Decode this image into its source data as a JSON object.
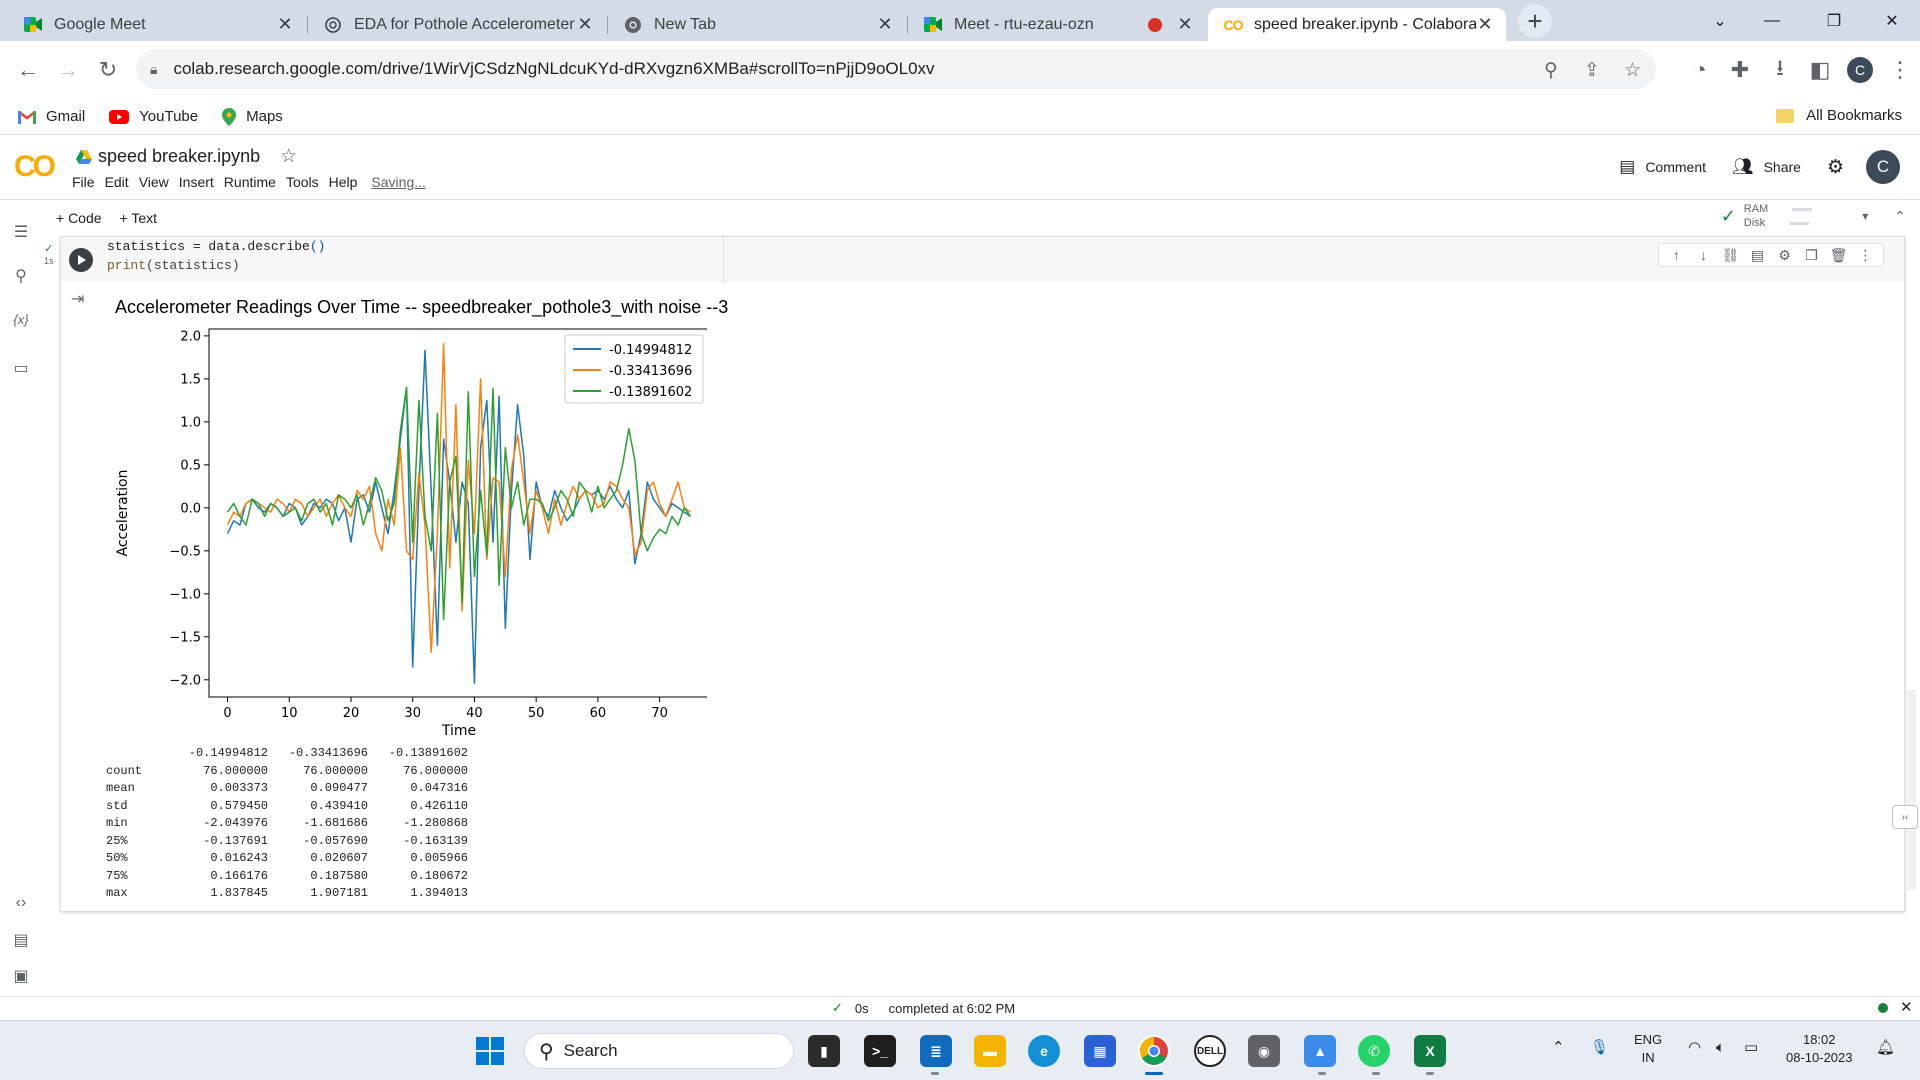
{
  "browser": {
    "tabs": [
      {
        "title": "Google Meet",
        "icon": "google-meet-icon",
        "active": false
      },
      {
        "title": "EDA for Pothole Accelerometer D",
        "icon": "openai-icon",
        "active": false
      },
      {
        "title": "New Tab",
        "icon": "chrome-icon",
        "active": false
      },
      {
        "title": "Meet - rtu-ezau-ozn",
        "icon": "google-meet-icon",
        "active": false,
        "recording": true
      },
      {
        "title": "speed breaker.ipynb - Colaborat",
        "icon": "colab-icon",
        "active": true
      }
    ],
    "url": "colab.research.google.com/drive/1WirVjCSdzNgNLdcuKYd-dRXvgzn6XMBa#scrollTo=nPjjD9oOL0xv",
    "profile_initial": "C",
    "bookmarks": [
      {
        "label": "Gmail",
        "icon": "gmail-icon"
      },
      {
        "label": "YouTube",
        "icon": "youtube-icon"
      },
      {
        "label": "Maps",
        "icon": "maps-icon"
      }
    ],
    "all_bookmarks": "All Bookmarks"
  },
  "colab": {
    "logo": "CO",
    "notebook_title": "speed breaker.ipynb",
    "menu": [
      "File",
      "Edit",
      "View",
      "Insert",
      "Runtime",
      "Tools",
      "Help"
    ],
    "saving_status": "Saving...",
    "comment_label": "Comment",
    "share_label": "Share",
    "user_initial": "C",
    "add_code": "+ Code",
    "add_text": "+ Text",
    "ram_label": "RAM",
    "disk_label": "Disk",
    "exec_time": "1s"
  },
  "cell": {
    "code_line1_a": "statistics = data.describe",
    "code_line1_b": "()",
    "code_line2_a": "print",
    "code_line2_b": "(statistics)"
  },
  "chart_data": {
    "type": "line",
    "title": "Accelerometer Readings Over Time -- speedbreaker_pothole3_with noise --3",
    "xlabel": "Time",
    "ylabel": "Acceleration",
    "xlim": [
      -3,
      78
    ],
    "ylim": [
      -2.2,
      2.08
    ],
    "xticks": [
      0,
      10,
      20,
      30,
      40,
      50,
      60,
      70
    ],
    "yticks": [
      -2.0,
      -1.5,
      -1.0,
      -0.5,
      0.0,
      0.5,
      1.0,
      1.5,
      2.0
    ],
    "legend_position": "top-right",
    "grid": false,
    "series": [
      {
        "name": "-0.14994812",
        "color": "#1f77b4",
        "values": [
          -0.3,
          -0.15,
          -0.2,
          0.05,
          0.1,
          0.0,
          -0.05,
          0.05,
          0.0,
          -0.1,
          0.05,
          0.0,
          -0.2,
          -0.1,
          0.05,
          0.0,
          0.1,
          0.05,
          -0.15,
          0.0,
          -0.4,
          0.1,
          0.15,
          -0.05,
          0.3,
          0.0,
          -0.3,
          0.2,
          0.8,
          1.4,
          -1.85,
          0.2,
          1.83,
          0.2,
          -1.6,
          0.8,
          0.3,
          -0.4,
          0.3,
          0.05,
          -2.04,
          0.7,
          1.25,
          -0.4,
          1.3,
          -1.4,
          0.2,
          1.2,
          0.6,
          -0.6,
          0.3,
          0.0,
          -0.1,
          0.2,
          0.0,
          -0.15,
          -0.05,
          0.1,
          0.2,
          0.15,
          0.2,
          0.1,
          0.25,
          0.1,
          0.0,
          0.2,
          -0.65,
          -0.3,
          0.3,
          0.1,
          0.0,
          -0.1,
          0.05,
          0.0,
          -0.05,
          -0.1
        ]
      },
      {
        "name": "-0.33413696",
        "color": "#ff7f0e",
        "values": [
          -0.2,
          -0.05,
          -0.1,
          0.05,
          0.1,
          0.05,
          0.0,
          -0.05,
          0.1,
          0.05,
          -0.05,
          0.1,
          0.05,
          -0.1,
          0.0,
          0.1,
          -0.1,
          0.05,
          0.15,
          0.0,
          -0.1,
          0.2,
          0.1,
          0.25,
          -0.3,
          -0.5,
          0.1,
          -0.2,
          0.7,
          -0.5,
          -0.6,
          0.4,
          -0.2,
          -1.68,
          -0.3,
          1.91,
          -0.7,
          1.2,
          -1.2,
          0.55,
          -0.3,
          1.5,
          -0.6,
          0.35,
          0.3,
          -0.8,
          0.45,
          0.85,
          0.3,
          -0.3,
          0.2,
          0.0,
          -0.3,
          0.1,
          -0.2,
          0.05,
          0.25,
          0.1,
          0.2,
          0.15,
          0.0,
          0.05,
          0.3,
          0.25,
          0.1,
          0.0,
          -0.55,
          -0.4,
          0.2,
          0.3,
          0.05,
          -0.1,
          0.1,
          0.3,
          0.0,
          -0.05
        ]
      },
      {
        "name": "-0.13891602",
        "color": "#2ca02c",
        "values": [
          -0.05,
          0.05,
          -0.1,
          -0.2,
          0.1,
          0.05,
          -0.1,
          0.05,
          0.0,
          -0.1,
          -0.05,
          0.0,
          -0.15,
          0.05,
          0.1,
          -0.05,
          0.05,
          -0.2,
          0.15,
          0.1,
          0.0,
          0.15,
          -0.2,
          0.05,
          0.35,
          0.2,
          -0.15,
          0.05,
          0.9,
          1.4,
          -0.4,
          1.25,
          -0.1,
          -0.5,
          1.1,
          -1.3,
          0.3,
          0.6,
          -1.1,
          1.35,
          -0.8,
          0.2,
          -0.55,
          1.39,
          -0.9,
          0.7,
          0.0,
          0.3,
          -0.2,
          0.1,
          0.1,
          0.05,
          -0.15,
          0.0,
          0.2,
          0.1,
          -0.1,
          0.3,
          0.2,
          -0.05,
          0.25,
          0.0,
          0.1,
          0.2,
          0.5,
          0.92,
          0.55,
          -0.3,
          -0.5,
          -0.35,
          -0.25,
          -0.3,
          -0.1,
          -0.2,
          0.0,
          -0.1
        ]
      }
    ]
  },
  "stats": {
    "columns": [
      "-0.14994812",
      "-0.33413696",
      "-0.13891602"
    ],
    "rows": [
      {
        "label": "count",
        "values": [
          "76.000000",
          "76.000000",
          "76.000000"
        ]
      },
      {
        "label": "mean",
        "values": [
          "0.003373",
          "0.090477",
          "0.047316"
        ]
      },
      {
        "label": "std",
        "values": [
          "0.579450",
          "0.439410",
          "0.426110"
        ]
      },
      {
        "label": "min",
        "values": [
          "-2.043976",
          "-1.681686",
          "-1.280868"
        ]
      },
      {
        "label": "25%",
        "values": [
          "-0.137691",
          "-0.057690",
          "-0.163139"
        ]
      },
      {
        "label": "50%",
        "values": [
          "0.016243",
          "0.020607",
          "0.005966"
        ]
      },
      {
        "label": "75%",
        "values": [
          "0.166176",
          "0.187580",
          "0.180672"
        ]
      },
      {
        "label": "max",
        "values": [
          "1.837845",
          "1.907181",
          "1.394013"
        ]
      }
    ]
  },
  "statusbar": {
    "duration": "0s",
    "message": "completed at 6:02 PM"
  },
  "taskbar": {
    "search_label": "Search",
    "language": "ENG",
    "region": "IN",
    "time": "18:02",
    "date": "08-10-2023"
  }
}
